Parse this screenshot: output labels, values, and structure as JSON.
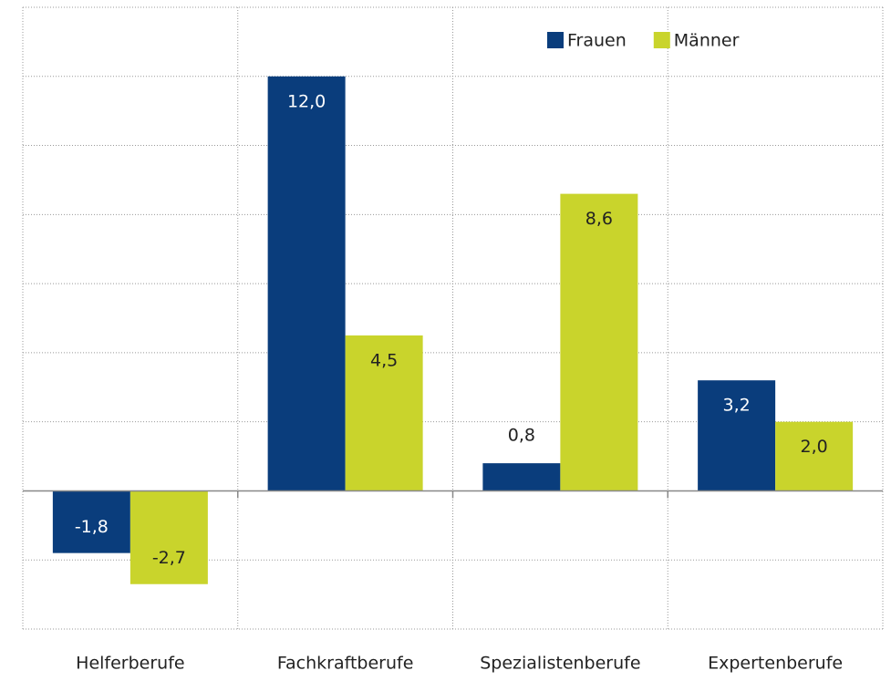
{
  "chart_data": {
    "type": "bar",
    "categories": [
      "Helferberufe",
      "Fachkraftberufe",
      "Spezialistenberufe",
      "Expertenberufe"
    ],
    "series": [
      {
        "name": "Frauen",
        "color": "#0a3d7c",
        "values": [
          -1.8,
          12.0,
          0.8,
          3.2
        ],
        "value_labels": [
          "-1,8",
          "12,0",
          "0,8",
          "3,2"
        ]
      },
      {
        "name": "Männer",
        "color": "#c9d42c",
        "values": [
          -2.7,
          4.5,
          8.6,
          2.0
        ],
        "value_labels": [
          "-2,7",
          "4,5",
          "8,6",
          "2,0"
        ]
      }
    ],
    "ylim": [
      -4,
      14
    ],
    "yticks": [
      -4,
      -2,
      0,
      2,
      4,
      6,
      8,
      10,
      12,
      14
    ],
    "grid": true,
    "legend": "top-right"
  }
}
